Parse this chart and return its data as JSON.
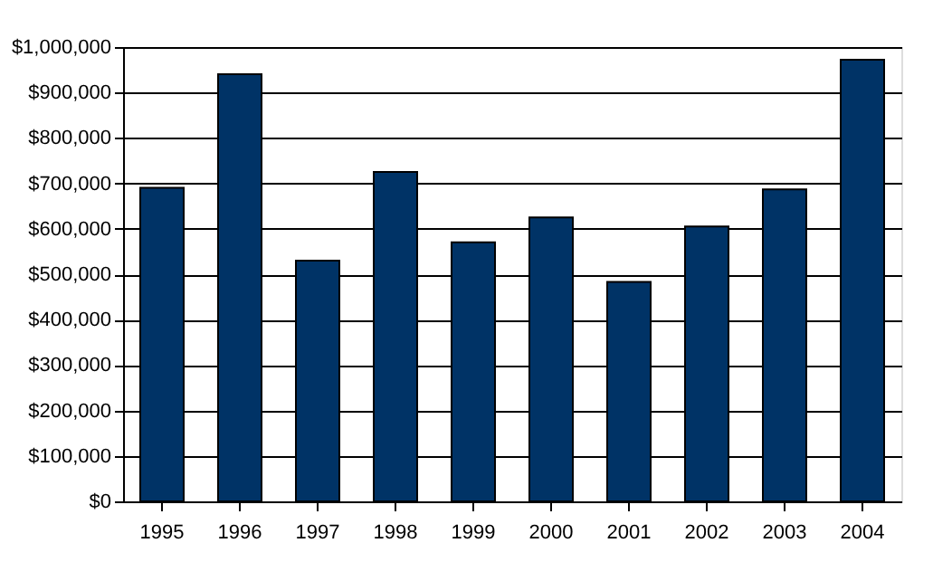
{
  "chart_data": {
    "type": "bar",
    "categories": [
      "1995",
      "1996",
      "1997",
      "1998",
      "1999",
      "2000",
      "2001",
      "2002",
      "2003",
      "2004"
    ],
    "values": [
      690000,
      940000,
      530000,
      725000,
      570000,
      625000,
      483000,
      605000,
      687000,
      972000
    ],
    "color": "#003366",
    "ylim": [
      0,
      1000000
    ],
    "yticks": [
      {
        "value": 0,
        "label": "$0"
      },
      {
        "value": 100000,
        "label": "$100,000"
      },
      {
        "value": 200000,
        "label": "$200,000"
      },
      {
        "value": 300000,
        "label": "$300,000"
      },
      {
        "value": 400000,
        "label": "$400,000"
      },
      {
        "value": 500000,
        "label": "$500,000"
      },
      {
        "value": 600000,
        "label": "$600,000"
      },
      {
        "value": 700000,
        "label": "$700,000"
      },
      {
        "value": 800000,
        "label": "$800,000"
      },
      {
        "value": 900000,
        "label": "$900,000"
      },
      {
        "value": 1000000,
        "label": "$1,000,000"
      }
    ],
    "grid": "y"
  }
}
